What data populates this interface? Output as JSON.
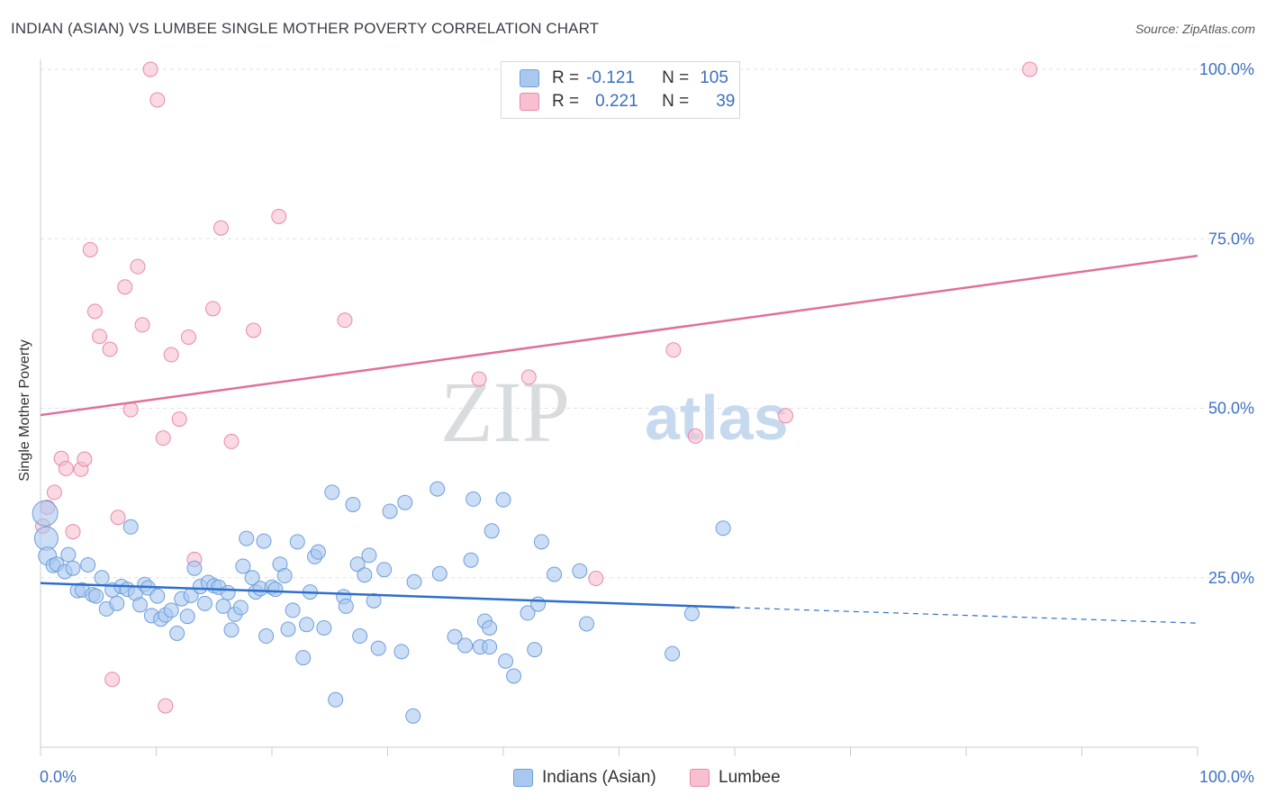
{
  "title": "INDIAN (ASIAN) VS LUMBEE SINGLE MOTHER POVERTY CORRELATION CHART",
  "source": "Source: ZipAtlas.com",
  "watermark": {
    "part1": "ZIP",
    "part2": "atlas"
  },
  "legend": {
    "rows": [
      {
        "r_label": "R =",
        "r_value": "-0.121",
        "n_label": "N =",
        "n_value": "105"
      },
      {
        "r_label": "R =",
        "r_value": "0.221",
        "n_label": "N =",
        "n_value": "39"
      }
    ]
  },
  "bottom_legend": {
    "series1": "Indians (Asian)",
    "series2": "Lumbee"
  },
  "colors": {
    "series1_fill": "#a9c8f0",
    "series1_stroke": "#6f9fdc",
    "series1_line": "#2f6fcc",
    "series2_fill": "#f7bfd0",
    "series2_stroke": "#e88aa8",
    "series2_line": "#e0709a",
    "tick_label": "#3f72c4",
    "grid": "#dfe2e6"
  },
  "chart_data": {
    "type": "scatter",
    "title": "INDIAN (ASIAN) VS LUMBEE SINGLE MOTHER POVERTY CORRELATION CHART",
    "xlabel": "",
    "ylabel": "Single Mother Poverty",
    "xlim": [
      0,
      100
    ],
    "ylim": [
      0,
      102
    ],
    "x_tick_labels": [
      "0.0%",
      "100.0%"
    ],
    "y_ticks": [
      25,
      50,
      75,
      100
    ],
    "y_tick_labels": [
      "25.0%",
      "50.0%",
      "75.0%",
      "100.0%"
    ],
    "grid": true,
    "legend_position": "top-center",
    "series": [
      {
        "name": "Indians (Asian)",
        "R": -0.121,
        "N": 105,
        "trend": {
          "x": [
            0,
            60
          ],
          "y": [
            24.2,
            20.6
          ],
          "dashed_extension": {
            "x": [
              60,
              100
            ],
            "y": [
              20.6,
              18.3
            ]
          }
        },
        "points": [
          [
            0.4,
            34.5
          ],
          [
            0.5,
            30.8
          ],
          [
            0.6,
            28.2
          ],
          [
            1.1,
            26.8
          ],
          [
            1.4,
            27.0
          ],
          [
            2.1,
            25.9
          ],
          [
            2.4,
            28.4
          ],
          [
            2.8,
            26.4
          ],
          [
            3.2,
            23.1
          ],
          [
            3.6,
            23.2
          ],
          [
            4.1,
            26.9
          ],
          [
            4.5,
            22.5
          ],
          [
            4.8,
            22.3
          ],
          [
            5.3,
            25.0
          ],
          [
            5.7,
            20.4
          ],
          [
            6.2,
            23.2
          ],
          [
            6.6,
            21.2
          ],
          [
            7.0,
            23.7
          ],
          [
            7.5,
            23.3
          ],
          [
            7.8,
            32.5
          ],
          [
            8.2,
            22.7
          ],
          [
            8.6,
            21.0
          ],
          [
            9.0,
            24.0
          ],
          [
            9.3,
            23.5
          ],
          [
            9.6,
            19.4
          ],
          [
            10.1,
            22.3
          ],
          [
            10.4,
            18.9
          ],
          [
            10.8,
            19.5
          ],
          [
            11.3,
            20.2
          ],
          [
            11.8,
            16.8
          ],
          [
            12.2,
            21.9
          ],
          [
            12.7,
            19.3
          ],
          [
            13.0,
            22.4
          ],
          [
            13.3,
            26.4
          ],
          [
            13.8,
            23.7
          ],
          [
            14.2,
            21.2
          ],
          [
            14.5,
            24.3
          ],
          [
            15.0,
            23.8
          ],
          [
            15.4,
            23.6
          ],
          [
            15.8,
            20.8
          ],
          [
            16.2,
            22.8
          ],
          [
            16.5,
            17.3
          ],
          [
            16.8,
            19.6
          ],
          [
            17.3,
            20.6
          ],
          [
            17.5,
            26.7
          ],
          [
            17.8,
            30.8
          ],
          [
            18.3,
            25.0
          ],
          [
            18.6,
            22.9
          ],
          [
            19.0,
            23.4
          ],
          [
            19.3,
            30.4
          ],
          [
            19.5,
            16.4
          ],
          [
            20.0,
            23.6
          ],
          [
            20.3,
            23.3
          ],
          [
            20.7,
            27.0
          ],
          [
            21.1,
            25.3
          ],
          [
            21.4,
            17.4
          ],
          [
            21.8,
            20.2
          ],
          [
            22.2,
            30.3
          ],
          [
            22.7,
            13.2
          ],
          [
            23.0,
            18.1
          ],
          [
            23.3,
            22.9
          ],
          [
            23.7,
            28.1
          ],
          [
            24.0,
            28.8
          ],
          [
            24.5,
            17.6
          ],
          [
            25.2,
            37.6
          ],
          [
            25.5,
            7.0
          ],
          [
            26.2,
            22.2
          ],
          [
            26.4,
            20.8
          ],
          [
            27.0,
            35.8
          ],
          [
            27.4,
            27.0
          ],
          [
            27.6,
            16.4
          ],
          [
            28.0,
            25.4
          ],
          [
            28.4,
            28.3
          ],
          [
            28.8,
            21.6
          ],
          [
            29.2,
            14.6
          ],
          [
            29.7,
            26.2
          ],
          [
            30.2,
            34.8
          ],
          [
            31.2,
            14.1
          ],
          [
            31.5,
            36.1
          ],
          [
            32.2,
            4.6
          ],
          [
            32.3,
            24.4
          ],
          [
            34.3,
            38.1
          ],
          [
            34.5,
            25.6
          ],
          [
            35.8,
            16.3
          ],
          [
            36.7,
            15.0
          ],
          [
            37.2,
            27.6
          ],
          [
            37.4,
            36.6
          ],
          [
            38.0,
            14.8
          ],
          [
            38.4,
            18.6
          ],
          [
            38.8,
            17.6
          ],
          [
            38.8,
            14.8
          ],
          [
            39.0,
            31.9
          ],
          [
            40.0,
            36.5
          ],
          [
            40.2,
            12.7
          ],
          [
            40.9,
            10.5
          ],
          [
            42.1,
            19.8
          ],
          [
            42.7,
            14.4
          ],
          [
            43.0,
            21.1
          ],
          [
            43.3,
            30.3
          ],
          [
            44.4,
            25.5
          ],
          [
            46.6,
            26.0
          ],
          [
            47.2,
            18.2
          ],
          [
            54.6,
            13.8
          ],
          [
            56.3,
            19.7
          ],
          [
            59.0,
            32.3
          ]
        ]
      },
      {
        "name": "Lumbee",
        "R": 0.221,
        "N": 39,
        "trend": {
          "x": [
            0,
            100
          ],
          "y": [
            49.0,
            72.5
          ]
        },
        "points": [
          [
            0.2,
            32.6
          ],
          [
            0.6,
            35.4
          ],
          [
            1.2,
            37.6
          ],
          [
            1.8,
            42.6
          ],
          [
            2.2,
            41.1
          ],
          [
            2.8,
            31.8
          ],
          [
            3.5,
            41.0
          ],
          [
            3.8,
            42.5
          ],
          [
            4.3,
            73.4
          ],
          [
            4.7,
            64.3
          ],
          [
            5.1,
            60.6
          ],
          [
            6.0,
            58.7
          ],
          [
            6.2,
            10.0
          ],
          [
            6.7,
            33.9
          ],
          [
            7.3,
            67.9
          ],
          [
            7.8,
            49.8
          ],
          [
            8.4,
            70.9
          ],
          [
            8.8,
            62.3
          ],
          [
            9.5,
            100.0
          ],
          [
            10.1,
            95.5
          ],
          [
            10.6,
            45.6
          ],
          [
            10.8,
            6.1
          ],
          [
            11.3,
            57.9
          ],
          [
            12.0,
            48.4
          ],
          [
            12.8,
            60.5
          ],
          [
            13.3,
            27.7
          ],
          [
            14.9,
            64.7
          ],
          [
            15.6,
            76.6
          ],
          [
            16.5,
            45.1
          ],
          [
            18.4,
            61.5
          ],
          [
            20.6,
            78.3
          ],
          [
            26.3,
            63.0
          ],
          [
            37.9,
            54.3
          ],
          [
            42.2,
            54.6
          ],
          [
            48.0,
            24.9
          ],
          [
            54.7,
            58.6
          ],
          [
            56.6,
            45.9
          ],
          [
            64.4,
            48.9
          ],
          [
            85.5,
            100.0
          ]
        ]
      }
    ]
  }
}
